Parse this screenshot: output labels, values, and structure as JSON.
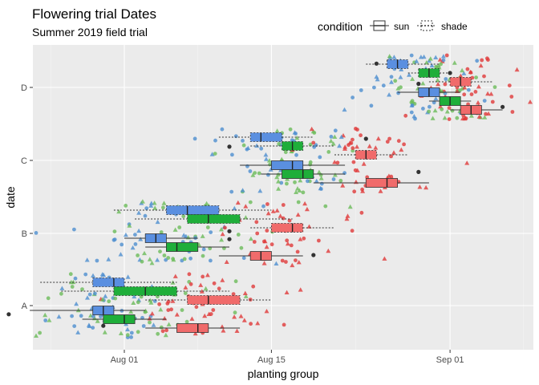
{
  "chart_data": {
    "type": "boxplot",
    "title": "Flowering trial Dates",
    "subtitle": "Summer 2019 field trial",
    "xlabel": "planting group",
    "ylabel": "date",
    "x_ticks": [
      "Aug 01",
      "Aug 15",
      "Sep 01"
    ],
    "y_categories": [
      "A",
      "B",
      "C",
      "D"
    ],
    "grid": true,
    "legend": {
      "title": "condition",
      "placement": "top-center",
      "entries": [
        {
          "key": "sun",
          "label": "sun",
          "linetype": "solid"
        },
        {
          "key": "shade",
          "label": "shade",
          "linetype": "dotted"
        }
      ]
    },
    "colors": {
      "panel": "#EBEBEB",
      "grid_major": "#FFFFFF",
      "blue": "#5A8FE0",
      "green": "#1FAE3A",
      "red": "#F06B6B",
      "point_blue": "#4E8FD0",
      "point_green": "#6CBB5A",
      "point_red": "#E03A3A",
      "outlier": "#333333"
    },
    "boxes": [
      {
        "category": "A",
        "condition": "shade",
        "group": "blue",
        "whisker_low": "2019-07-24",
        "q1": "2019-07-29",
        "median": "2019-07-31",
        "q3": "2019-08-01",
        "whisker_high": "2019-08-06"
      },
      {
        "category": "A",
        "condition": "shade",
        "group": "green",
        "whisker_low": "2019-07-26",
        "q1": "2019-07-31",
        "median": "2019-08-03",
        "q3": "2019-08-06",
        "whisker_high": "2019-08-11"
      },
      {
        "category": "A",
        "condition": "shade",
        "group": "red",
        "whisker_low": "2019-08-03",
        "q1": "2019-08-07",
        "median": "2019-08-09",
        "q3": "2019-08-12",
        "whisker_high": "2019-08-15"
      },
      {
        "category": "A",
        "condition": "sun",
        "group": "blue",
        "whisker_low": "2019-07-23",
        "q1": "2019-07-29",
        "median": "2019-07-30",
        "q3": "2019-07-31",
        "whisker_high": "2019-08-03"
      },
      {
        "category": "A",
        "condition": "sun",
        "group": "green",
        "whisker_low": "2019-07-28",
        "q1": "2019-07-30",
        "median": "2019-08-01",
        "q3": "2019-08-02",
        "whisker_high": "2019-08-05"
      },
      {
        "category": "A",
        "condition": "sun",
        "group": "red",
        "whisker_low": "2019-08-03",
        "q1": "2019-08-06",
        "median": "2019-08-08",
        "q3": "2019-08-09",
        "whisker_high": "2019-08-12"
      },
      {
        "category": "B",
        "condition": "shade",
        "group": "blue",
        "whisker_low": "2019-07-31",
        "q1": "2019-08-05",
        "median": "2019-08-07",
        "q3": "2019-08-10",
        "whisker_high": "2019-08-15"
      },
      {
        "category": "B",
        "condition": "shade",
        "group": "green",
        "whisker_low": "2019-08-02",
        "q1": "2019-08-07",
        "median": "2019-08-09",
        "q3": "2019-08-12",
        "whisker_high": "2019-08-17"
      },
      {
        "category": "B",
        "condition": "shade",
        "group": "red",
        "whisker_low": "2019-08-13",
        "q1": "2019-08-15",
        "median": "2019-08-17",
        "q3": "2019-08-18",
        "whisker_high": "2019-08-21"
      },
      {
        "category": "B",
        "condition": "sun",
        "group": "blue",
        "whisker_low": "2019-08-01",
        "q1": "2019-08-03",
        "median": "2019-08-04",
        "q3": "2019-08-05",
        "whisker_high": "2019-08-08"
      },
      {
        "category": "B",
        "condition": "sun",
        "group": "green",
        "whisker_low": "2019-08-03",
        "q1": "2019-08-05",
        "median": "2019-08-06",
        "q3": "2019-08-08",
        "whisker_high": "2019-08-11"
      },
      {
        "category": "B",
        "condition": "sun",
        "group": "red",
        "whisker_low": "2019-08-10",
        "q1": "2019-08-13",
        "median": "2019-08-14",
        "q3": "2019-08-15",
        "whisker_high": "2019-08-18"
      },
      {
        "category": "C",
        "condition": "shade",
        "group": "blue",
        "whisker_low": "2019-08-10",
        "q1": "2019-08-13",
        "median": "2019-08-14",
        "q3": "2019-08-16",
        "whisker_high": "2019-08-19"
      },
      {
        "category": "C",
        "condition": "shade",
        "group": "green",
        "whisker_low": "2019-08-13",
        "q1": "2019-08-16",
        "median": "2019-08-17",
        "q3": "2019-08-18",
        "whisker_high": "2019-08-21"
      },
      {
        "category": "C",
        "condition": "shade",
        "group": "red",
        "whisker_low": "2019-08-21",
        "q1": "2019-08-23",
        "median": "2019-08-24",
        "q3": "2019-08-25",
        "whisker_high": "2019-08-28"
      },
      {
        "category": "C",
        "condition": "sun",
        "group": "blue",
        "whisker_low": "2019-08-12",
        "q1": "2019-08-15",
        "median": "2019-08-17",
        "q3": "2019-08-18",
        "whisker_high": "2019-08-22"
      },
      {
        "category": "C",
        "condition": "sun",
        "group": "green",
        "whisker_low": "2019-08-14",
        "q1": "2019-08-16",
        "median": "2019-08-18",
        "q3": "2019-08-19",
        "whisker_high": "2019-08-22"
      },
      {
        "category": "C",
        "condition": "sun",
        "group": "red",
        "whisker_low": "2019-08-19",
        "q1": "2019-08-24",
        "median": "2019-08-26",
        "q3": "2019-08-27",
        "whisker_high": "2019-08-30"
      },
      {
        "category": "D",
        "condition": "shade",
        "group": "blue",
        "whisker_low": "2019-08-24",
        "q1": "2019-08-26",
        "median": "2019-08-27",
        "q3": "2019-08-28",
        "whisker_high": "2019-08-31"
      },
      {
        "category": "D",
        "condition": "shade",
        "group": "green",
        "whisker_low": "2019-08-28",
        "q1": "2019-08-29",
        "median": "2019-08-30",
        "q3": "2019-08-31",
        "whisker_high": "2019-09-01"
      },
      {
        "category": "D",
        "condition": "shade",
        "group": "red",
        "whisker_low": "2019-08-30",
        "q1": "2019-09-01",
        "median": "2019-09-02",
        "q3": "2019-09-03",
        "whisker_high": "2019-09-05"
      },
      {
        "category": "D",
        "condition": "sun",
        "group": "blue",
        "whisker_low": "2019-08-27",
        "q1": "2019-08-29",
        "median": "2019-08-30",
        "q3": "2019-08-31",
        "whisker_high": "2019-09-02"
      },
      {
        "category": "D",
        "condition": "sun",
        "group": "green",
        "whisker_low": "2019-08-30",
        "q1": "2019-08-31",
        "median": "2019-09-01",
        "q3": "2019-09-02",
        "whisker_high": "2019-09-03"
      },
      {
        "category": "D",
        "condition": "sun",
        "group": "red",
        "whisker_low": "2019-09-01",
        "q1": "2019-09-02",
        "median": "2019-09-03",
        "q3": "2019-09-04",
        "whisker_high": "2019-09-06"
      }
    ],
    "outliers": [
      {
        "category": "A",
        "x": "2019-07-21",
        "y": -0.12
      },
      {
        "category": "A",
        "x": "2019-07-30",
        "y": -0.28
      },
      {
        "category": "B",
        "x": "2019-08-11",
        "y": 0.03
      },
      {
        "category": "B",
        "x": "2019-08-19",
        "y": -0.3
      },
      {
        "category": "B",
        "x": "2019-08-11",
        "y": -0.08
      },
      {
        "category": "C",
        "x": "2019-08-11",
        "y": 0.19
      },
      {
        "category": "C",
        "x": "2019-08-24",
        "y": 0.3
      },
      {
        "category": "C",
        "x": "2019-08-29",
        "y": -0.16
      },
      {
        "category": "D",
        "x": "2019-08-25",
        "y": 0.33
      },
      {
        "category": "D",
        "x": "2019-09-01",
        "y": 0.2
      },
      {
        "category": "D",
        "x": "2019-08-29",
        "y": 0.05
      },
      {
        "category": "D",
        "x": "2019-09-06",
        "y": -0.27
      }
    ]
  }
}
